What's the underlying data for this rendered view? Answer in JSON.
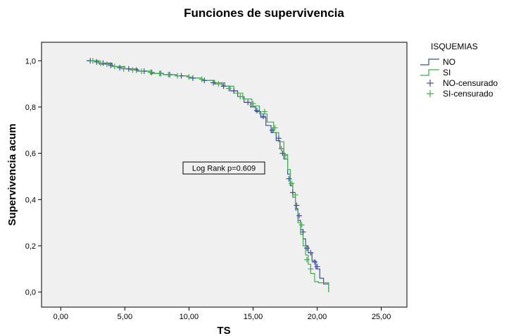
{
  "chart_data": {
    "type": "line",
    "title": "Funciones de supervivencia",
    "xlabel": "TS",
    "ylabel": "Supervivencia acum",
    "xlim": [
      -1.5,
      27
    ],
    "ylim": [
      -0.065,
      1.08
    ],
    "x_ticks": [
      0,
      5,
      10,
      15,
      20,
      25
    ],
    "x_tick_labels": [
      "0,00",
      "5,00",
      "10,00",
      "15,00",
      "20,00",
      "25,00"
    ],
    "y_ticks": [
      0,
      0.2,
      0.4,
      0.6,
      0.8,
      1.0
    ],
    "y_tick_labels": [
      "0,0",
      "0,2",
      "0,4",
      "0,6",
      "0,8",
      "1,0"
    ],
    "grid": false,
    "legend": {
      "title": "ISQUEMIAS",
      "position": "right",
      "entries": [
        {
          "label": "NO",
          "marker": "step-line",
          "color": "#3c4f9b"
        },
        {
          "label": "SI",
          "marker": "step-line",
          "color": "#3fae49"
        },
        {
          "label": "NO-censurado",
          "marker": "plus",
          "color": "#3c4f9b"
        },
        {
          "label": "SI-censurado",
          "marker": "plus",
          "color": "#3fae49"
        }
      ]
    },
    "annotation": "Log Rank p=0.609",
    "series": [
      {
        "name": "NO",
        "color": "#3c4f9b",
        "x": [
          2.0,
          3.0,
          4.0,
          5.0,
          6.0,
          7.0,
          8.0,
          9.0,
          10.0,
          11.0,
          12.0,
          12.6,
          13.2,
          13.8,
          14.3,
          14.8,
          15.2,
          15.6,
          16.0,
          16.4,
          16.8,
          17.1,
          17.4,
          17.7,
          17.9,
          18.1,
          18.3,
          18.5,
          18.7,
          18.9,
          19.1,
          19.3,
          19.6,
          19.9,
          20.2,
          20.5,
          20.9
        ],
        "y": [
          1.0,
          0.99,
          0.975,
          0.965,
          0.955,
          0.945,
          0.94,
          0.935,
          0.925,
          0.915,
          0.9,
          0.89,
          0.87,
          0.845,
          0.82,
          0.8,
          0.78,
          0.755,
          0.72,
          0.69,
          0.655,
          0.62,
          0.575,
          0.51,
          0.46,
          0.41,
          0.36,
          0.31,
          0.27,
          0.23,
          0.2,
          0.17,
          0.135,
          0.1,
          0.06,
          0.035,
          0.0
        ],
        "censored_x": [
          2.3,
          2.8,
          3.3,
          3.9,
          4.6,
          5.3,
          5.9,
          6.5,
          7.1,
          7.8,
          8.5,
          9.4,
          10.3,
          11.2,
          11.9,
          12.7,
          13.5,
          14.6,
          15.3,
          15.8,
          16.5,
          17.0,
          17.3,
          17.8,
          18.1,
          18.4,
          18.6,
          18.9,
          19.2,
          19.5,
          19.8,
          20.0
        ],
        "censored_y": [
          1.0,
          0.995,
          0.99,
          0.98,
          0.97,
          0.965,
          0.96,
          0.955,
          0.95,
          0.945,
          0.94,
          0.935,
          0.925,
          0.915,
          0.905,
          0.89,
          0.87,
          0.82,
          0.785,
          0.76,
          0.7,
          0.665,
          0.6,
          0.49,
          0.43,
          0.375,
          0.33,
          0.26,
          0.19,
          0.17,
          0.13,
          0.11
        ]
      },
      {
        "name": "SI",
        "color": "#3fae49",
        "x": [
          2.0,
          3.0,
          4.0,
          5.0,
          6.0,
          7.0,
          8.0,
          9.0,
          10.0,
          11.0,
          12.0,
          12.8,
          13.5,
          14.2,
          14.9,
          15.5,
          16.1,
          16.6,
          17.0,
          17.4,
          17.7,
          17.9,
          18.1,
          18.3,
          18.5,
          18.7,
          18.9,
          19.1,
          19.3,
          19.5,
          19.8,
          20.1,
          20.9
        ],
        "y": [
          1.0,
          0.985,
          0.975,
          0.965,
          0.955,
          0.945,
          0.94,
          0.935,
          0.925,
          0.915,
          0.905,
          0.89,
          0.86,
          0.835,
          0.805,
          0.77,
          0.735,
          0.69,
          0.65,
          0.595,
          0.53,
          0.47,
          0.41,
          0.355,
          0.3,
          0.25,
          0.2,
          0.16,
          0.12,
          0.08,
          0.045,
          0.04,
          0.0
        ],
        "censored_x": [
          2.5,
          3.1,
          3.6,
          4.2,
          4.9,
          5.6,
          6.3,
          7.0,
          7.7,
          8.4,
          9.1,
          10.0,
          11.0,
          12.3,
          13.1,
          14.0,
          15.0,
          15.9,
          16.7,
          17.2,
          17.5,
          18.0,
          18.3,
          18.8,
          19.2,
          19.5
        ],
        "censored_y": [
          1.0,
          0.99,
          0.985,
          0.975,
          0.965,
          0.96,
          0.955,
          0.95,
          0.945,
          0.94,
          0.935,
          0.93,
          0.92,
          0.9,
          0.88,
          0.845,
          0.815,
          0.78,
          0.71,
          0.62,
          0.59,
          0.47,
          0.42,
          0.29,
          0.14,
          0.1
        ]
      }
    ]
  }
}
